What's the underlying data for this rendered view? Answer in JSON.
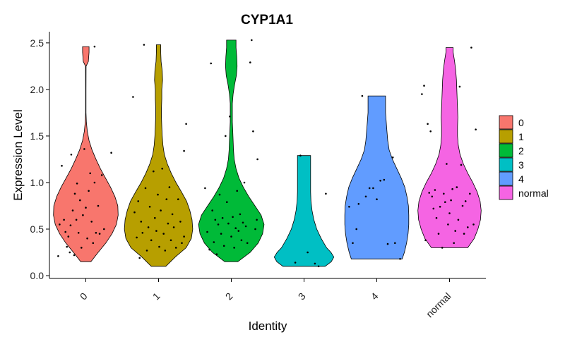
{
  "chart_data": {
    "type": "violin",
    "title": "CYP1A1",
    "xlabel": "Identity",
    "ylabel": "Expression Level",
    "ylim": [
      -0.03,
      2.62
    ],
    "yticks": [
      0.0,
      0.5,
      1.0,
      1.5,
      2.0,
      2.5
    ],
    "ytick_labels": [
      "0.0",
      "0.5",
      "1.0",
      "1.5",
      "2.0",
      "2.5"
    ],
    "categories": [
      "0",
      "1",
      "2",
      "3",
      "4",
      "normal"
    ],
    "legend": {
      "position": "right",
      "entries": [
        "0",
        "1",
        "2",
        "3",
        "4",
        "normal"
      ]
    },
    "grid": false,
    "colors": [
      "#F8766D",
      "#B79F00",
      "#00BA38",
      "#00BFC4",
      "#619CFF",
      "#F564E3"
    ],
    "series": [
      {
        "category": "0",
        "min": 0.15,
        "max": 2.46,
        "profile": [
          [
            0.15,
            0.14
          ],
          [
            0.25,
            0.34
          ],
          [
            0.35,
            0.55
          ],
          [
            0.45,
            0.72
          ],
          [
            0.55,
            0.84
          ],
          [
            0.65,
            0.89
          ],
          [
            0.75,
            0.88
          ],
          [
            0.85,
            0.8
          ],
          [
            0.95,
            0.68
          ],
          [
            1.05,
            0.54
          ],
          [
            1.15,
            0.4
          ],
          [
            1.25,
            0.28
          ],
          [
            1.35,
            0.17
          ],
          [
            1.45,
            0.09
          ],
          [
            1.55,
            0.04
          ],
          [
            1.65,
            0.015
          ],
          [
            1.75,
            0.006
          ],
          [
            2.0,
            0.006
          ],
          [
            2.25,
            0.008
          ],
          [
            2.3,
            0.07
          ],
          [
            2.4,
            0.09
          ],
          [
            2.46,
            0.09
          ]
        ],
        "points": [
          [
            -0.38,
            0.21
          ],
          [
            -0.36,
            0.55
          ],
          [
            -0.33,
            1.18
          ],
          [
            -0.3,
            0.6
          ],
          [
            -0.28,
            0.47
          ],
          [
            -0.26,
            0.31
          ],
          [
            -0.24,
            0.42
          ],
          [
            -0.22,
            0.25
          ],
          [
            -0.21,
            0.54
          ],
          [
            -0.2,
            1.3
          ],
          [
            -0.18,
            0.7
          ],
          [
            -0.16,
            0.22
          ],
          [
            -0.15,
            0.88
          ],
          [
            -0.13,
            0.6
          ],
          [
            -0.12,
            0.99
          ],
          [
            -0.1,
            0.46
          ],
          [
            -0.08,
            0.81
          ],
          [
            -0.06,
            0.3
          ],
          [
            -0.04,
            0.65
          ],
          [
            -0.02,
            1.36
          ],
          [
            0.0,
            0.73
          ],
          [
            0.02,
            0.4
          ],
          [
            0.04,
            0.91
          ],
          [
            0.06,
            1.1
          ],
          [
            0.08,
            0.58
          ],
          [
            0.1,
            0.35
          ],
          [
            0.12,
            1.0
          ],
          [
            0.14,
            0.46
          ],
          [
            0.17,
            0.75
          ],
          [
            0.19,
            0.45
          ],
          [
            0.22,
            1.08
          ],
          [
            0.25,
            0.5
          ],
          [
            0.35,
            1.32
          ],
          [
            0.12,
            2.46
          ]
        ]
      },
      {
        "category": "1",
        "min": 0.1,
        "max": 2.48,
        "profile": [
          [
            0.1,
            0.2
          ],
          [
            0.2,
            0.46
          ],
          [
            0.3,
            0.76
          ],
          [
            0.4,
            0.9
          ],
          [
            0.5,
            0.94
          ],
          [
            0.6,
            0.92
          ],
          [
            0.7,
            0.86
          ],
          [
            0.8,
            0.77
          ],
          [
            0.9,
            0.63
          ],
          [
            1.0,
            0.48
          ],
          [
            1.1,
            0.35
          ],
          [
            1.2,
            0.24
          ],
          [
            1.3,
            0.16
          ],
          [
            1.4,
            0.12
          ],
          [
            1.5,
            0.1
          ],
          [
            1.6,
            0.09
          ],
          [
            1.7,
            0.08
          ],
          [
            1.8,
            0.08
          ],
          [
            1.9,
            0.09
          ],
          [
            2.0,
            0.09
          ],
          [
            2.1,
            0.11
          ],
          [
            2.2,
            0.1
          ],
          [
            2.3,
            0.07
          ],
          [
            2.4,
            0.06
          ],
          [
            2.48,
            0.06
          ]
        ],
        "points": [
          [
            -0.35,
            1.92
          ],
          [
            -0.33,
            0.68
          ],
          [
            -0.3,
            0.41
          ],
          [
            -0.28,
            0.8
          ],
          [
            -0.26,
            0.19
          ],
          [
            -0.24,
            0.58
          ],
          [
            -0.22,
            0.46
          ],
          [
            -0.2,
            2.48
          ],
          [
            -0.18,
            0.94
          ],
          [
            -0.16,
            0.27
          ],
          [
            -0.14,
            0.52
          ],
          [
            -0.12,
            0.74
          ],
          [
            -0.1,
            0.38
          ],
          [
            -0.07,
            1.12
          ],
          [
            -0.05,
            0.62
          ],
          [
            -0.03,
            0.48
          ],
          [
            -0.01,
            0.87
          ],
          [
            0.01,
            0.31
          ],
          [
            0.03,
            0.7
          ],
          [
            0.05,
            1.15
          ],
          [
            0.07,
            0.45
          ],
          [
            0.09,
            0.27
          ],
          [
            0.11,
            0.82
          ],
          [
            0.13,
            0.56
          ],
          [
            0.15,
            0.95
          ],
          [
            0.17,
            0.38
          ],
          [
            0.19,
            0.66
          ],
          [
            0.21,
            0.52
          ],
          [
            0.24,
            0.3
          ],
          [
            0.27,
            0.82
          ],
          [
            0.3,
            0.58
          ],
          [
            0.32,
            0.35
          ],
          [
            0.35,
            1.34
          ],
          [
            0.38,
            1.63
          ],
          [
            0.35,
            0.42
          ]
        ]
      },
      {
        "category": "2",
        "min": 0.15,
        "max": 2.53,
        "profile": [
          [
            0.15,
            0.18
          ],
          [
            0.25,
            0.52
          ],
          [
            0.35,
            0.74
          ],
          [
            0.45,
            0.86
          ],
          [
            0.55,
            0.9
          ],
          [
            0.65,
            0.82
          ],
          [
            0.75,
            0.65
          ],
          [
            0.85,
            0.48
          ],
          [
            0.95,
            0.33
          ],
          [
            1.05,
            0.21
          ],
          [
            1.15,
            0.13
          ],
          [
            1.25,
            0.08
          ],
          [
            1.35,
            0.06
          ],
          [
            1.45,
            0.05
          ],
          [
            1.55,
            0.04
          ],
          [
            1.65,
            0.03
          ],
          [
            1.75,
            0.03
          ],
          [
            1.85,
            0.03
          ],
          [
            1.95,
            0.05
          ],
          [
            2.05,
            0.09
          ],
          [
            2.15,
            0.14
          ],
          [
            2.25,
            0.16
          ],
          [
            2.35,
            0.15
          ],
          [
            2.45,
            0.13
          ],
          [
            2.53,
            0.13
          ]
        ],
        "points": [
          [
            -0.36,
            0.94
          ],
          [
            -0.33,
            0.47
          ],
          [
            -0.3,
            0.28
          ],
          [
            -0.28,
            2.28
          ],
          [
            -0.26,
            0.7
          ],
          [
            -0.24,
            0.36
          ],
          [
            -0.22,
            0.6
          ],
          [
            -0.2,
            0.23
          ],
          [
            -0.18,
            0.55
          ],
          [
            -0.16,
            0.87
          ],
          [
            -0.14,
            0.45
          ],
          [
            -0.12,
            0.62
          ],
          [
            -0.1,
            0.32
          ],
          [
            -0.08,
            1.5
          ],
          [
            -0.06,
            0.79
          ],
          [
            -0.04,
            0.56
          ],
          [
            -0.02,
            1.71
          ],
          [
            0.0,
            0.42
          ],
          [
            0.02,
            0.63
          ],
          [
            0.04,
            0.3
          ],
          [
            0.06,
            0.51
          ],
          [
            0.08,
            0.91
          ],
          [
            0.1,
            0.48
          ],
          [
            0.12,
            0.66
          ],
          [
            0.14,
            0.38
          ],
          [
            0.16,
            0.57
          ],
          [
            0.18,
            1.0
          ],
          [
            0.2,
            0.53
          ],
          [
            0.22,
            0.35
          ],
          [
            0.26,
            2.29
          ],
          [
            0.28,
            2.53
          ],
          [
            0.3,
            1.55
          ],
          [
            0.33,
            0.5
          ],
          [
            0.36,
            1.25
          ],
          [
            0.35,
            0.6
          ]
        ]
      },
      {
        "category": "3",
        "min": 0.1,
        "max": 1.29,
        "profile": [
          [
            0.1,
            0.58
          ],
          [
            0.15,
            0.75
          ],
          [
            0.2,
            0.82
          ],
          [
            0.25,
            0.74
          ],
          [
            0.3,
            0.62
          ],
          [
            0.4,
            0.47
          ],
          [
            0.5,
            0.35
          ],
          [
            0.6,
            0.27
          ],
          [
            0.7,
            0.22
          ],
          [
            0.8,
            0.19
          ],
          [
            0.9,
            0.18
          ],
          [
            1.0,
            0.18
          ],
          [
            1.1,
            0.18
          ],
          [
            1.2,
            0.18
          ],
          [
            1.29,
            0.18
          ]
        ],
        "points": [
          [
            -0.12,
            0.14
          ],
          [
            -0.05,
            1.29
          ],
          [
            0.05,
            0.25
          ],
          [
            0.15,
            0.13
          ],
          [
            0.2,
            0.1
          ],
          [
            0.3,
            0.88
          ]
        ]
      },
      {
        "category": "4",
        "min": 0.18,
        "max": 1.93,
        "profile": [
          [
            0.18,
            0.7
          ],
          [
            0.25,
            0.76
          ],
          [
            0.35,
            0.82
          ],
          [
            0.45,
            0.86
          ],
          [
            0.55,
            0.88
          ],
          [
            0.65,
            0.88
          ],
          [
            0.75,
            0.87
          ],
          [
            0.85,
            0.83
          ],
          [
            0.95,
            0.77
          ],
          [
            1.05,
            0.67
          ],
          [
            1.15,
            0.55
          ],
          [
            1.25,
            0.43
          ],
          [
            1.35,
            0.34
          ],
          [
            1.45,
            0.3
          ],
          [
            1.55,
            0.28
          ],
          [
            1.65,
            0.26
          ],
          [
            1.75,
            0.24
          ],
          [
            1.85,
            0.24
          ],
          [
            1.93,
            0.24
          ]
        ],
        "points": [
          [
            -0.38,
            0.74
          ],
          [
            -0.33,
            0.35
          ],
          [
            -0.28,
            0.5
          ],
          [
            -0.25,
            0.77
          ],
          [
            -0.2,
            1.93
          ],
          [
            -0.15,
            0.85
          ],
          [
            -0.1,
            0.94
          ],
          [
            -0.05,
            0.94
          ],
          [
            0.0,
            0.82
          ],
          [
            0.05,
            1.02
          ],
          [
            0.1,
            1.03
          ],
          [
            0.15,
            0.34
          ],
          [
            0.22,
            1.27
          ],
          [
            0.25,
            0.35
          ],
          [
            0.32,
            0.18
          ]
        ]
      },
      {
        "category": "normal",
        "min": 0.3,
        "max": 2.45,
        "profile": [
          [
            0.3,
            0.5
          ],
          [
            0.4,
            0.68
          ],
          [
            0.5,
            0.78
          ],
          [
            0.6,
            0.85
          ],
          [
            0.7,
            0.87
          ],
          [
            0.8,
            0.84
          ],
          [
            0.9,
            0.76
          ],
          [
            1.0,
            0.64
          ],
          [
            1.1,
            0.5
          ],
          [
            1.2,
            0.38
          ],
          [
            1.3,
            0.29
          ],
          [
            1.4,
            0.24
          ],
          [
            1.5,
            0.22
          ],
          [
            1.6,
            0.22
          ],
          [
            1.7,
            0.23
          ],
          [
            1.8,
            0.22
          ],
          [
            1.9,
            0.21
          ],
          [
            2.0,
            0.2
          ],
          [
            2.1,
            0.19
          ],
          [
            2.2,
            0.17
          ],
          [
            2.3,
            0.14
          ],
          [
            2.4,
            0.1
          ],
          [
            2.45,
            0.1
          ]
        ],
        "points": [
          [
            -0.38,
            1.95
          ],
          [
            -0.35,
            2.04
          ],
          [
            -0.33,
            0.38
          ],
          [
            -0.3,
            1.63
          ],
          [
            -0.28,
            0.89
          ],
          [
            -0.26,
            1.55
          ],
          [
            -0.24,
            0.85
          ],
          [
            -0.22,
            0.72
          ],
          [
            -0.2,
            0.92
          ],
          [
            -0.18,
            0.62
          ],
          [
            -0.15,
            0.45
          ],
          [
            -0.13,
            0.74
          ],
          [
            -0.1,
            0.3
          ],
          [
            -0.08,
            0.88
          ],
          [
            -0.06,
            0.79
          ],
          [
            -0.04,
            1.2
          ],
          [
            -0.02,
            0.55
          ],
          [
            0.0,
            0.67
          ],
          [
            0.02,
            0.81
          ],
          [
            0.04,
            0.93
          ],
          [
            0.06,
            0.35
          ],
          [
            0.08,
            0.48
          ],
          [
            0.1,
            0.95
          ],
          [
            0.12,
            0.6
          ],
          [
            0.14,
            2.03
          ],
          [
            0.16,
            1.19
          ],
          [
            0.18,
            0.75
          ],
          [
            0.2,
            0.45
          ],
          [
            0.22,
            0.8
          ],
          [
            0.25,
            0.52
          ],
          [
            0.28,
            0.88
          ],
          [
            0.3,
            2.45
          ],
          [
            0.33,
            0.55
          ],
          [
            0.36,
            1.57
          ]
        ]
      }
    ]
  }
}
